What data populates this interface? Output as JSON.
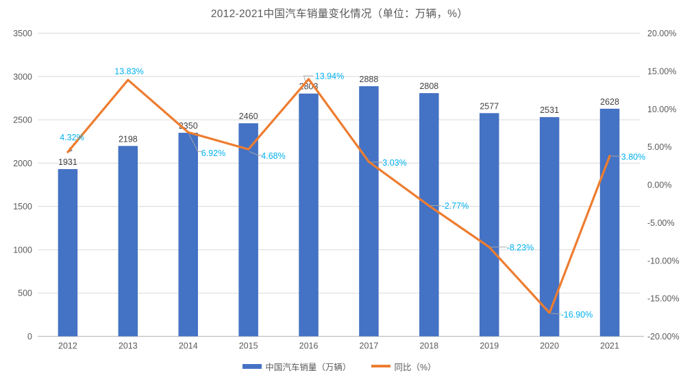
{
  "title": "2012-2021中国汽车销量变化情况（单位：万辆，%）",
  "colors": {
    "bar_series": "#4472C4",
    "line_series": "#ED7D31",
    "pct_label": "#00B0F0",
    "bar_value_label": "#404040",
    "axis_text": "#595959",
    "gridline": "#D9D9D9",
    "axis_line": "#BFBFBF",
    "leader_line": "#A6A6A6",
    "background": "#FFFFFF"
  },
  "chart_data": {
    "type": "combo_bar_line",
    "title": "2012-2021中国汽车销量变化情况（单位：万辆，%）",
    "categories": [
      "2012",
      "2013",
      "2014",
      "2015",
      "2016",
      "2017",
      "2018",
      "2019",
      "2020",
      "2021"
    ],
    "series": [
      {
        "name": "中国汽车销量（万辆）",
        "type": "bar",
        "axis": "left",
        "values": [
          1931,
          2198,
          2350,
          2460,
          2803,
          2888,
          2808,
          2577,
          2531,
          2628
        ]
      },
      {
        "name": "同比（%）",
        "type": "line",
        "axis": "right",
        "values": [
          4.32,
          13.83,
          6.92,
          4.68,
          13.94,
          3.03,
          -2.77,
          -8.23,
          -16.9,
          3.8
        ],
        "point_labels": [
          "4.32%",
          "13.83%",
          "6.92%",
          "4.68%",
          "13.94%",
          "3.03%",
          "-2.77%",
          "-8.23%",
          "-16.90%",
          "3.80%"
        ]
      }
    ],
    "left_axis": {
      "min": 0,
      "max": 3500,
      "step": 500,
      "tick_labels": [
        "0",
        "500",
        "1000",
        "1500",
        "2000",
        "2500",
        "3000",
        "3500"
      ]
    },
    "right_axis": {
      "min": -20,
      "max": 20,
      "step": 5,
      "tick_labels": [
        "-20.00%",
        "-15.00%",
        "-10.00%",
        "-5.00%",
        "0.00%",
        "5.00%",
        "10.00%",
        "15.00%",
        "20.00%"
      ]
    },
    "grid": "horizontal",
    "legend_position": "bottom",
    "legend": [
      {
        "label": "中国汽车销量（万辆）",
        "swatch": "bar"
      },
      {
        "label": "同比（%）",
        "swatch": "line"
      }
    ]
  }
}
